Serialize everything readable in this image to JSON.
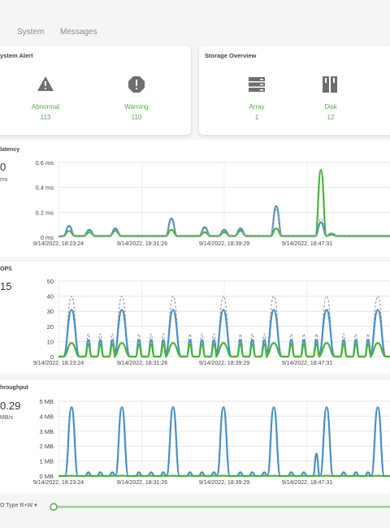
{
  "tabs": [
    "System",
    "Messages"
  ],
  "system_alert": {
    "title": "ystem Alert",
    "items": [
      {
        "label": "Abnormal",
        "value": "113",
        "icon": "warning-triangle-icon"
      },
      {
        "label": "Warning",
        "value": "110",
        "icon": "warning-octagon-icon"
      }
    ]
  },
  "storage_overview": {
    "title": "Storage Overview",
    "items": [
      {
        "label": "Array",
        "value": "1",
        "icon": "array-icon"
      },
      {
        "label": "Disk",
        "value": "12",
        "icon": "disk-icon"
      }
    ]
  },
  "colors": {
    "accent": "#55a84a",
    "blue": "#4a8fc4",
    "green": "#4bb33e",
    "gray": "#a0a0a0"
  },
  "timestamps": [
    "9/14/2022, 18:23:24",
    "9/14/2022, 18:31:26",
    "9/14/2022, 18:39:29",
    "9/14/2022, 18:47:31"
  ],
  "panels": {
    "latency": {
      "title": "latency",
      "big_value": "0",
      "unit": "ms",
      "yticks": [
        "0.6 ms",
        "0.4 ms",
        "0.2 ms",
        "0 ms"
      ]
    },
    "iops": {
      "title": "OPS",
      "big_value": "15",
      "unit": "",
      "yticks": [
        "50",
        "40",
        "30",
        "20",
        "10",
        "0"
      ]
    },
    "throughput": {
      "title": "hroughput",
      "big_value": "0.29",
      "unit": "MB/s",
      "yticks": [
        "5 MB",
        "4 MB",
        "3 MB",
        "2 MB",
        "1 MB",
        "0 MB"
      ]
    }
  },
  "footer": {
    "io_type": "O Type R+W"
  },
  "chart_data": [
    {
      "type": "line",
      "title": "latency",
      "ylim": [
        0,
        0.6
      ],
      "yunit": "ms",
      "x": [
        "9/14/2022, 18:23:24",
        "9/14/2022, 18:31:26",
        "9/14/2022, 18:39:29",
        "9/14/2022, 18:47:31"
      ],
      "series": [
        {
          "color": "#4a8fc4",
          "peaks": [
            0.09,
            0.06,
            0.07,
            0.15,
            0.08,
            0.06,
            0.07,
            0.25,
            0.12,
            0.03
          ]
        },
        {
          "color": "#4bb33e",
          "peaks": [
            0.05,
            0.04,
            0.05,
            0.06,
            0.04,
            0.04,
            0.05,
            0.07,
            0.54,
            0.02
          ]
        },
        {
          "color": "#a0a0a0",
          "peaks": [
            0.08,
            0.05,
            0.06,
            0.13,
            0.07,
            0.05,
            0.06,
            0.22,
            0.15,
            0.03
          ]
        }
      ]
    },
    {
      "type": "line",
      "title": "OPS",
      "ylim": [
        0,
        50
      ],
      "x": [
        "9/14/2022, 18:23:24",
        "9/14/2022, 18:31:26",
        "9/14/2022, 18:39:29",
        "9/14/2022, 18:47:31"
      ],
      "series": [
        {
          "color": "#a0a0a0",
          "big": 40,
          "small": 15
        },
        {
          "color": "#4a8fc4",
          "big": 31,
          "small": 11
        },
        {
          "color": "#4bb33e",
          "big": 9,
          "small": 8
        }
      ]
    },
    {
      "type": "line",
      "title": "hroughput",
      "ylim": [
        0,
        5
      ],
      "yunit": "MB",
      "x": [
        "9/14/2022, 18:23:24",
        "9/14/2022, 18:31:26",
        "9/14/2022, 18:39:29",
        "9/14/2022, 18:47:31"
      ],
      "series": [
        {
          "color": "#4a8fc4",
          "big": 4.6,
          "small": 0.25,
          "extra": 1.5
        },
        {
          "color": "#4bb33e",
          "big": 0.02,
          "small": 0.02
        }
      ]
    }
  ]
}
